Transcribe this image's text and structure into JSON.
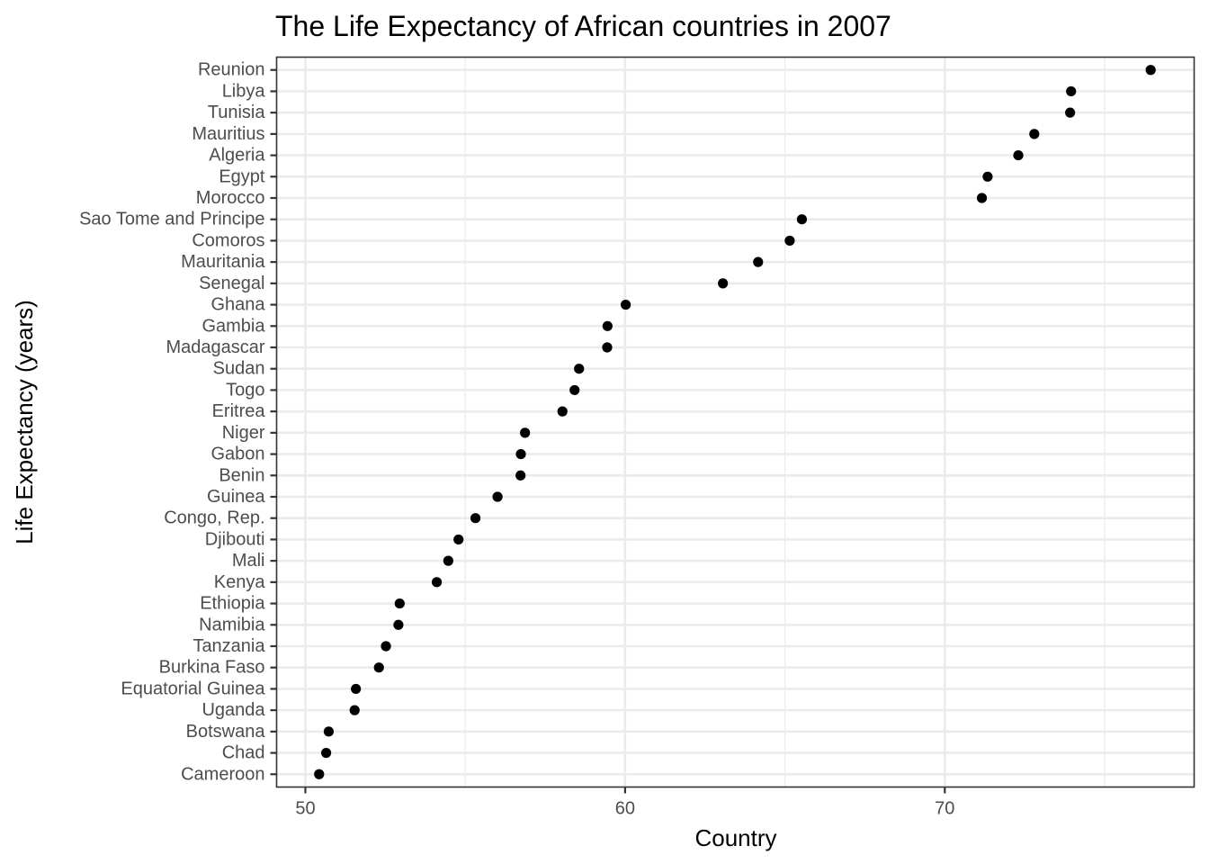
{
  "chart_data": {
    "type": "scatter",
    "title": "The Life Expectancy of African countries in 2007",
    "xlabel": "Country",
    "ylabel": "Life Expectancy (years)",
    "xlim": [
      49.1,
      77.8
    ],
    "x_ticks": [
      50,
      60,
      70
    ],
    "x_tick_labels": [
      "50",
      "60",
      "70"
    ],
    "grid": true,
    "theme": "bw",
    "point_color": "#000000",
    "categories": [
      "Cameroon",
      "Chad",
      "Botswana",
      "Uganda",
      "Equatorial Guinea",
      "Burkina Faso",
      "Tanzania",
      "Namibia",
      "Ethiopia",
      "Kenya",
      "Mali",
      "Djibouti",
      "Congo, Rep.",
      "Guinea",
      "Benin",
      "Gabon",
      "Niger",
      "Eritrea",
      "Togo",
      "Sudan",
      "Madagascar",
      "Gambia",
      "Ghana",
      "Senegal",
      "Mauritania",
      "Comoros",
      "Sao Tome and Principe",
      "Morocco",
      "Egypt",
      "Algeria",
      "Mauritius",
      "Tunisia",
      "Libya",
      "Reunion"
    ],
    "values": [
      50.43,
      50.65,
      50.73,
      51.54,
      51.58,
      52.3,
      52.52,
      52.91,
      52.95,
      54.11,
      54.47,
      54.79,
      55.32,
      56.01,
      56.73,
      56.74,
      56.87,
      58.04,
      58.42,
      58.56,
      59.44,
      59.45,
      60.02,
      63.06,
      64.16,
      65.15,
      65.53,
      71.16,
      71.34,
      72.3,
      72.8,
      73.92,
      73.95,
      76.44
    ]
  }
}
